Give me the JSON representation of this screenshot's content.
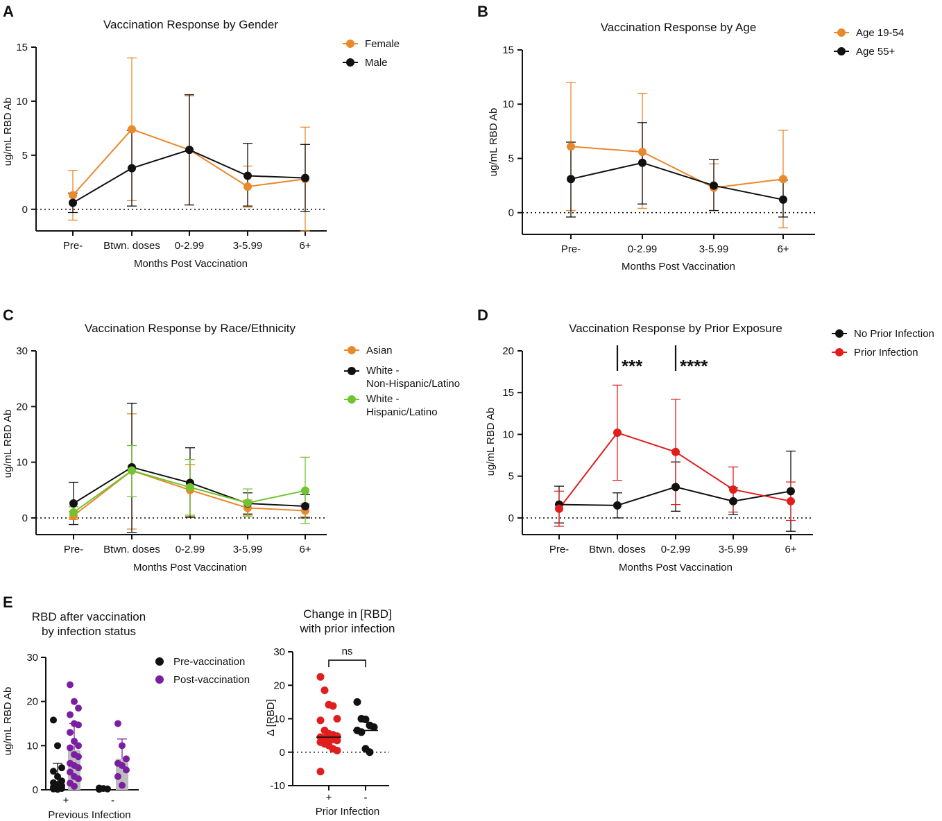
{
  "colors": {
    "orange": "#e8892b",
    "black": "#111111",
    "green": "#71c42f",
    "red": "#e01e1e",
    "purple": "#7a1fa2",
    "grey": "#bdbdbd"
  },
  "chart_data": [
    {
      "panel": "A",
      "type": "line",
      "title": "Vaccination Response by Gender",
      "xlabel": "Months Post Vaccination",
      "ylabel": "ug/mL RBD Ab",
      "categories": [
        "Pre-",
        "Btwn. doses",
        "0-2.99",
        "3-5.99",
        "6+"
      ],
      "ylim": [
        -2,
        15
      ],
      "yticks": [
        0,
        5,
        10,
        15
      ],
      "series": [
        {
          "name": "Female",
          "color": "#e8892b",
          "values": [
            1.3,
            7.4,
            5.5,
            2.1,
            2.8
          ],
          "upper": [
            3.6,
            14.0,
            10.5,
            4.0,
            7.6
          ],
          "lower": [
            -1.0,
            0.8,
            0.4,
            0.2,
            -2.0
          ]
        },
        {
          "name": "Male",
          "color": "#111111",
          "values": [
            0.6,
            3.8,
            5.5,
            3.1,
            2.9
          ],
          "upper": [
            1.5,
            7.3,
            10.6,
            6.1,
            6.0
          ],
          "lower": [
            -0.3,
            0.3,
            0.4,
            0.3,
            -0.2
          ]
        }
      ]
    },
    {
      "panel": "B",
      "type": "line",
      "title": "Vaccination Response by Age",
      "xlabel": "Months Post Vaccination",
      "ylabel": "ug/mL RBD Ab",
      "categories": [
        "Pre-",
        "0-2.99",
        "3-5.99",
        "6+"
      ],
      "ylim": [
        -2,
        15
      ],
      "yticks": [
        0,
        5,
        10,
        15
      ],
      "series": [
        {
          "name": "Age 19-54",
          "color": "#e8892b",
          "values": [
            6.1,
            5.6,
            2.3,
            3.1
          ],
          "upper": [
            12.0,
            11.0,
            4.5,
            7.6
          ],
          "lower": [
            0.2,
            0.4,
            0.2,
            -1.4
          ]
        },
        {
          "name": "Age 55+",
          "color": "#111111",
          "values": [
            3.1,
            4.6,
            2.5,
            1.2
          ],
          "upper": [
            6.5,
            8.3,
            4.9,
            3.0
          ],
          "lower": [
            -0.4,
            0.8,
            0.2,
            -0.4
          ]
        }
      ]
    },
    {
      "panel": "C",
      "type": "line",
      "title": "Vaccination Response by Race/Ethnicity",
      "xlabel": "Months Post Vaccination",
      "ylabel": "ug/mL RBD Ab",
      "categories": [
        "Pre-",
        "Btwn. doses",
        "0-2.99",
        "3-5.99",
        "6+"
      ],
      "ylim": [
        -3,
        30
      ],
      "yticks": [
        0,
        10,
        20,
        30
      ],
      "series": [
        {
          "name": "Asian",
          "color": "#e8892b",
          "values": [
            0.4,
            8.5,
            5.0,
            1.8,
            1.3
          ],
          "upper": [
            1.2,
            18.7,
            9.6,
            3.2,
            2.5
          ],
          "lower": [
            -0.3,
            -2.0,
            0.3,
            0.5,
            0.2
          ]
        },
        {
          "name": "White - Non-Hispanic/Latino",
          "color": "#111111",
          "values": [
            2.6,
            9.1,
            6.3,
            2.6,
            2.1
          ],
          "upper": [
            6.4,
            20.6,
            12.6,
            4.5,
            4.2
          ],
          "lower": [
            -1.2,
            -2.6,
            0.1,
            0.7,
            0.0
          ]
        },
        {
          "name": "White - Hispanic/Latino",
          "color": "#71c42f",
          "values": [
            1.0,
            8.5,
            5.5,
            2.7,
            4.9
          ],
          "upper": [
            2.0,
            13.0,
            10.5,
            5.2,
            10.9
          ],
          "lower": [
            0.0,
            3.8,
            0.5,
            0.3,
            -1.0
          ]
        }
      ]
    },
    {
      "panel": "D",
      "type": "line",
      "title": "Vaccination Response by Prior Exposure",
      "xlabel": "Months Post Vaccination",
      "ylabel": "ug/mL RBD Ab",
      "categories": [
        "Pre-",
        "Btwn. doses",
        "0-2.99",
        "3-5.99",
        "6+"
      ],
      "ylim": [
        -2,
        20
      ],
      "yticks": [
        0,
        5,
        10,
        15,
        20
      ],
      "annotations": [
        "***",
        "****"
      ],
      "series": [
        {
          "name": "No Prior Infection",
          "color": "#111111",
          "values": [
            1.6,
            1.5,
            3.7,
            2.0,
            3.2
          ],
          "upper": [
            3.8,
            3.0,
            6.7,
            3.6,
            8.0
          ],
          "lower": [
            -0.6,
            0.0,
            0.8,
            0.4,
            -1.6
          ]
        },
        {
          "name": "Prior Infection",
          "color": "#e01e1e",
          "values": [
            1.1,
            10.2,
            7.9,
            3.4,
            2.0
          ],
          "upper": [
            3.2,
            15.9,
            14.2,
            6.1,
            4.3
          ],
          "lower": [
            -1.0,
            4.5,
            1.6,
            0.7,
            -0.3
          ]
        }
      ]
    },
    {
      "panel": "E1",
      "type": "scatter",
      "title": "RBD after vaccination by infection status",
      "title_lines": [
        "RBD after vaccination",
        "by infection status"
      ],
      "xlabel": "Previous Infection",
      "ylabel": "ug/mL RBD Ab",
      "categories": [
        "+",
        "-"
      ],
      "ylim": [
        0,
        30
      ],
      "yticks": [
        0,
        10,
        20,
        30
      ],
      "series": [
        {
          "name": "Pre-vaccination",
          "color": "#111111",
          "means": [
            2.0,
            0.2
          ],
          "upper": [
            6.0,
            0.4
          ],
          "points": [
            [
              15.8,
              10.0,
              5.0,
              4.2,
              3.0,
              2.0,
              1.6,
              1.2,
              0.9,
              0.6,
              0.4,
              0.3,
              0.2,
              0.1
            ],
            [
              0.4,
              0.3,
              0.2,
              0.1
            ]
          ]
        },
        {
          "name": "Post-vaccination",
          "color": "#7a1fa2",
          "means": [
            9.0,
            7.0
          ],
          "upper": [
            15.0,
            11.5
          ],
          "points": [
            [
              23.8,
              20.0,
              18.5,
              17.0,
              15.0,
              14.7,
              13.0,
              11.0,
              10.0,
              9.5,
              8.0,
              7.5,
              6.0,
              5.5,
              5.0,
              4.0,
              3.0,
              2.5,
              1.5,
              0.8
            ],
            [
              15.0,
              10.0,
              7.0,
              6.0,
              5.5,
              4.5,
              3.0,
              1.0
            ]
          ]
        }
      ]
    },
    {
      "panel": "E2",
      "type": "scatter",
      "title": "Change in [RBD] with prior infection",
      "title_lines": [
        "Change in [RBD]",
        "with prior infection"
      ],
      "xlabel": "Prior Infection",
      "ylabel": "Δ [RBD]",
      "categories": [
        "+",
        "-"
      ],
      "ylim": [
        -10,
        30
      ],
      "yticks": [
        -10,
        0,
        10,
        20,
        30
      ],
      "annotation": "ns",
      "medians": [
        4.5,
        6.5
      ],
      "groups": [
        {
          "color": "#e01e1e",
          "points": [
            22.5,
            18.5,
            14.2,
            13.8,
            10.0,
            9.5,
            6.5,
            5.5,
            5.2,
            4.8,
            4.5,
            4.2,
            4.0,
            3.8,
            3.5,
            3.0,
            2.5,
            2.0,
            1.0,
            0.5,
            -5.8
          ]
        },
        {
          "color": "#111111",
          "points": [
            15.0,
            10.0,
            9.8,
            8.0,
            7.5,
            6.5,
            6.0,
            1.0,
            0.0
          ]
        }
      ]
    }
  ]
}
